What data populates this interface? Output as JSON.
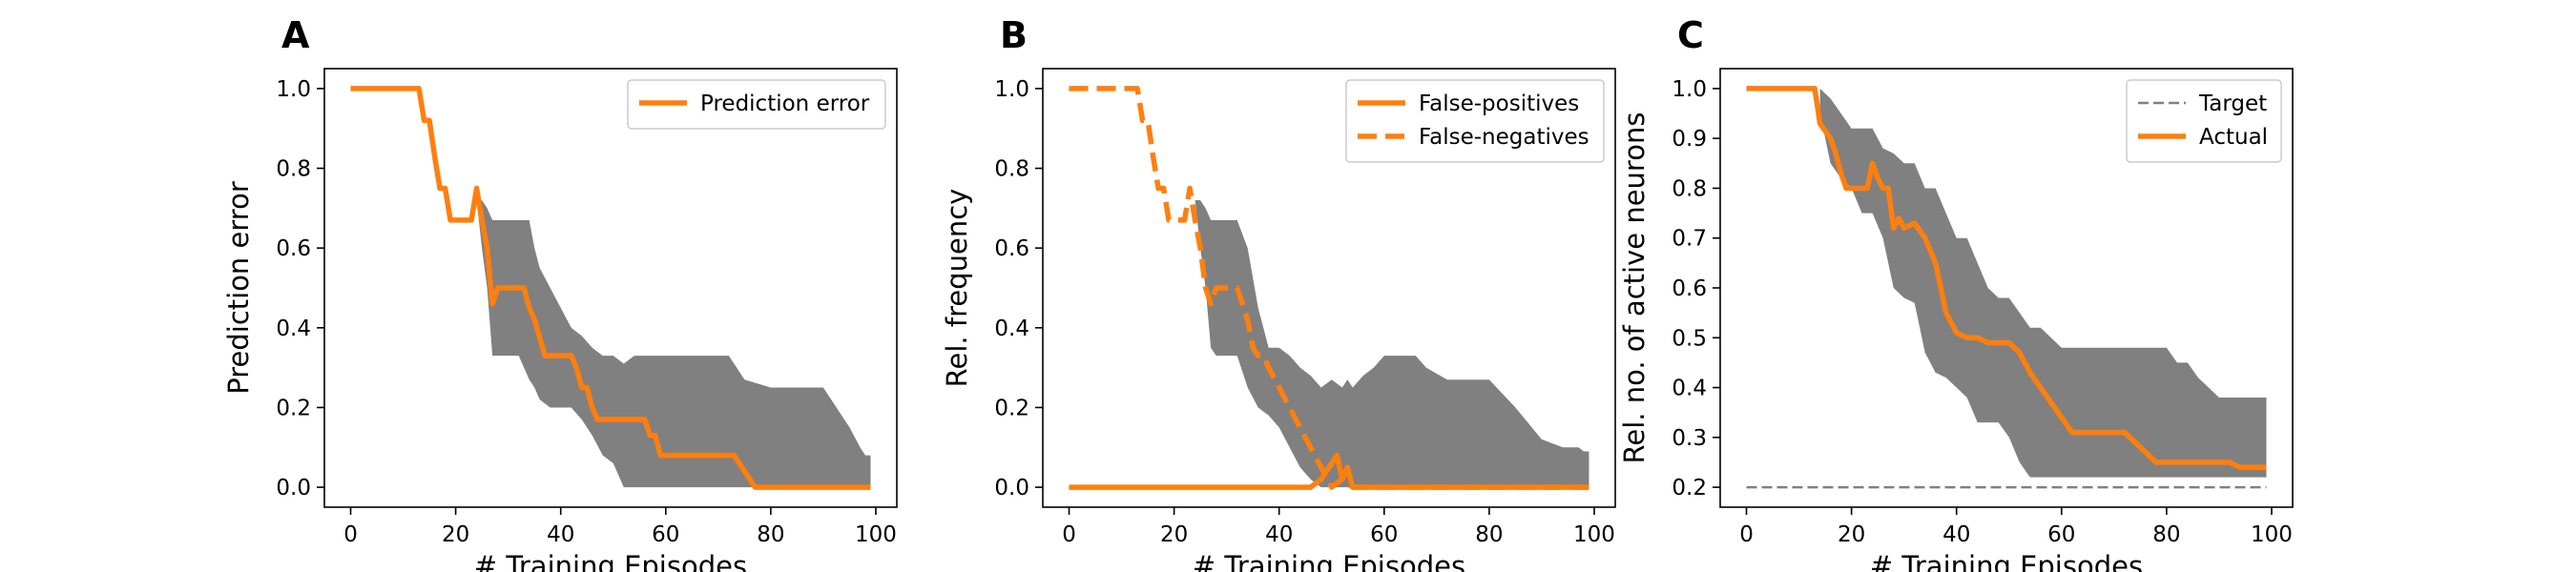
{
  "chart_data": [
    {
      "type": "line",
      "panel": "A",
      "xlabel": "# Training Episodes",
      "ylabel": "Prediction error",
      "xlim": [
        -5,
        104
      ],
      "ylim": [
        -0.05,
        1.05
      ],
      "xticks": [
        0,
        20,
        40,
        60,
        80,
        100
      ],
      "yticks": [
        0.0,
        0.2,
        0.4,
        0.6,
        0.8,
        1.0
      ],
      "tick_decimals": 1,
      "legend_position": "top-right",
      "series": [
        {
          "name": "Prediction error",
          "style": "solid",
          "color": "#ff7f0e",
          "x": [
            0,
            13,
            14,
            15,
            16,
            17,
            18,
            19,
            20,
            23,
            24,
            25,
            26,
            27,
            28,
            29,
            30,
            33,
            34,
            35,
            37,
            38,
            42,
            43,
            44,
            45,
            46,
            47,
            48,
            49,
            50,
            56,
            57,
            58,
            59,
            60,
            72,
            73,
            74,
            75,
            76,
            77,
            99
          ],
          "y": [
            1.0,
            1.0,
            0.92,
            0.92,
            0.83,
            0.75,
            0.75,
            0.67,
            0.67,
            0.67,
            0.75,
            0.67,
            0.6,
            0.46,
            0.5,
            0.5,
            0.5,
            0.5,
            0.45,
            0.42,
            0.33,
            0.33,
            0.33,
            0.3,
            0.25,
            0.25,
            0.2,
            0.17,
            0.17,
            0.17,
            0.17,
            0.17,
            0.13,
            0.13,
            0.08,
            0.08,
            0.08,
            0.08,
            0.06,
            0.04,
            0.02,
            0.0,
            0.0
          ]
        }
      ],
      "bands": [
        {
          "color": "#808080",
          "x": [
            24,
            25,
            26,
            27,
            28,
            29,
            30,
            32,
            34,
            35,
            36,
            38,
            40,
            42,
            44,
            46,
            48,
            50,
            52,
            54,
            56,
            58,
            60,
            65,
            70,
            72,
            75,
            80,
            85,
            90,
            95,
            97,
            98,
            99
          ],
          "upper": [
            0.72,
            0.72,
            0.7,
            0.67,
            0.67,
            0.67,
            0.67,
            0.67,
            0.67,
            0.6,
            0.55,
            0.5,
            0.45,
            0.4,
            0.38,
            0.35,
            0.33,
            0.33,
            0.31,
            0.33,
            0.33,
            0.33,
            0.33,
            0.33,
            0.33,
            0.33,
            0.27,
            0.25,
            0.25,
            0.25,
            0.15,
            0.1,
            0.08,
            0.08
          ],
          "lower": [
            0.72,
            0.6,
            0.5,
            0.33,
            0.33,
            0.33,
            0.33,
            0.33,
            0.27,
            0.25,
            0.22,
            0.2,
            0.2,
            0.2,
            0.17,
            0.13,
            0.08,
            0.06,
            0.0,
            0.0,
            0.0,
            0.0,
            0.0,
            0.0,
            0.0,
            0.0,
            0.0,
            0.0,
            0.0,
            0.0,
            0.0,
            0.0,
            0.0,
            0.0
          ]
        }
      ]
    },
    {
      "type": "line",
      "panel": "B",
      "xlabel": "# Training Episodes",
      "ylabel": "Rel. frequency",
      "xlim": [
        -5,
        104
      ],
      "ylim": [
        -0.05,
        1.05
      ],
      "xticks": [
        0,
        20,
        40,
        60,
        80,
        100
      ],
      "yticks": [
        0.0,
        0.2,
        0.4,
        0.6,
        0.8,
        1.0
      ],
      "tick_decimals": 1,
      "legend_position": "top-right",
      "series": [
        {
          "name": "False-positives",
          "style": "solid",
          "color": "#ff7f0e",
          "x": [
            0,
            46,
            47,
            48,
            49,
            50,
            51,
            52,
            53,
            54,
            55,
            56,
            99
          ],
          "y": [
            0.0,
            0.0,
            0.01,
            0.02,
            0.04,
            0.06,
            0.08,
            0.02,
            0.05,
            0.0,
            0.0,
            0.0,
            0.0
          ]
        },
        {
          "name": "False-negatives",
          "style": "dashed",
          "color": "#ff7f0e",
          "x": [
            0,
            13,
            14,
            15,
            16,
            17,
            18,
            19,
            20,
            22,
            23,
            24,
            25,
            26,
            27,
            28,
            29,
            30,
            32,
            34,
            35,
            36,
            37,
            38,
            40,
            42,
            44,
            46,
            48,
            50,
            52,
            54,
            99
          ],
          "y": [
            1.0,
            1.0,
            0.92,
            0.92,
            0.83,
            0.75,
            0.75,
            0.67,
            0.67,
            0.67,
            0.75,
            0.67,
            0.6,
            0.5,
            0.46,
            0.5,
            0.5,
            0.5,
            0.5,
            0.42,
            0.35,
            0.33,
            0.33,
            0.3,
            0.25,
            0.2,
            0.15,
            0.1,
            0.05,
            0.0,
            0.02,
            0.0,
            0.0
          ]
        }
      ],
      "bands": [
        {
          "color": "#808080",
          "x": [
            24,
            25,
            26,
            27,
            28,
            29,
            30,
            32,
            34,
            36,
            38,
            40,
            42,
            44,
            46,
            48,
            50,
            52,
            53,
            54,
            56,
            58,
            60,
            62,
            64,
            66,
            68,
            72,
            76,
            80,
            85,
            90,
            94,
            96,
            97,
            98,
            99
          ],
          "upper": [
            0.72,
            0.72,
            0.7,
            0.67,
            0.67,
            0.67,
            0.67,
            0.67,
            0.6,
            0.45,
            0.35,
            0.35,
            0.33,
            0.3,
            0.28,
            0.25,
            0.27,
            0.25,
            0.27,
            0.25,
            0.28,
            0.3,
            0.33,
            0.33,
            0.33,
            0.33,
            0.3,
            0.27,
            0.27,
            0.27,
            0.2,
            0.12,
            0.1,
            0.1,
            0.1,
            0.09,
            0.09
          ],
          "lower": [
            0.72,
            0.6,
            0.5,
            0.35,
            0.33,
            0.33,
            0.33,
            0.33,
            0.25,
            0.2,
            0.18,
            0.15,
            0.1,
            0.05,
            0.02,
            0.0,
            0.0,
            0.0,
            0.0,
            0.0,
            0.0,
            0.0,
            0.0,
            0.0,
            0.0,
            0.0,
            0.0,
            0.0,
            0.0,
            0.0,
            0.0,
            0.0,
            0.0,
            0.0,
            0.0,
            0.0,
            0.0
          ]
        }
      ]
    },
    {
      "type": "line",
      "panel": "C",
      "xlabel": "# Training Episodes",
      "ylabel": "Rel. no. of active neurons",
      "xlim": [
        -5,
        104
      ],
      "ylim": [
        0.16,
        1.04
      ],
      "xticks": [
        0,
        20,
        40,
        60,
        80,
        100
      ],
      "yticks": [
        0.2,
        0.3,
        0.4,
        0.5,
        0.6,
        0.7,
        0.8,
        0.9,
        1.0
      ],
      "tick_decimals": 1,
      "legend_position": "top-right",
      "series": [
        {
          "name": "Target",
          "style": "dashed-thin",
          "color": "#808080",
          "x": [
            0,
            99
          ],
          "y": [
            0.2,
            0.2
          ]
        },
        {
          "name": "Actual",
          "style": "solid",
          "color": "#ff7f0e",
          "x": [
            0,
            13,
            14,
            16,
            17,
            18,
            19,
            20,
            22,
            23,
            24,
            25,
            26,
            27,
            28,
            29,
            30,
            32,
            34,
            36,
            38,
            40,
            42,
            44,
            46,
            50,
            52,
            54,
            56,
            58,
            60,
            62,
            64,
            66,
            68,
            70,
            72,
            74,
            76,
            78,
            80,
            82,
            84,
            86,
            88,
            90,
            92,
            94,
            96,
            99
          ],
          "y": [
            1.0,
            1.0,
            0.93,
            0.9,
            0.87,
            0.83,
            0.8,
            0.8,
            0.8,
            0.8,
            0.85,
            0.82,
            0.8,
            0.8,
            0.72,
            0.74,
            0.72,
            0.73,
            0.7,
            0.65,
            0.55,
            0.51,
            0.5,
            0.5,
            0.49,
            0.49,
            0.47,
            0.43,
            0.4,
            0.37,
            0.34,
            0.31,
            0.31,
            0.31,
            0.31,
            0.31,
            0.31,
            0.29,
            0.27,
            0.25,
            0.25,
            0.25,
            0.25,
            0.25,
            0.25,
            0.25,
            0.25,
            0.24,
            0.24,
            0.24
          ]
        }
      ],
      "bands": [
        {
          "color": "#808080",
          "x": [
            14,
            16,
            18,
            20,
            22,
            24,
            26,
            28,
            30,
            32,
            34,
            36,
            38,
            40,
            42,
            44,
            46,
            48,
            50,
            52,
            54,
            56,
            58,
            60,
            62,
            64,
            66,
            68,
            70,
            72,
            74,
            76,
            78,
            80,
            82,
            84,
            86,
            88,
            90,
            92,
            94,
            96,
            98,
            99
          ],
          "upper": [
            1.0,
            0.98,
            0.95,
            0.92,
            0.92,
            0.92,
            0.88,
            0.87,
            0.85,
            0.85,
            0.8,
            0.8,
            0.75,
            0.7,
            0.7,
            0.65,
            0.6,
            0.58,
            0.58,
            0.55,
            0.52,
            0.52,
            0.5,
            0.48,
            0.48,
            0.48,
            0.48,
            0.48,
            0.48,
            0.48,
            0.48,
            0.48,
            0.48,
            0.48,
            0.45,
            0.45,
            0.42,
            0.4,
            0.38,
            0.38,
            0.38,
            0.38,
            0.38,
            0.38
          ],
          "lower": [
            0.95,
            0.85,
            0.82,
            0.8,
            0.75,
            0.75,
            0.7,
            0.6,
            0.58,
            0.57,
            0.47,
            0.43,
            0.42,
            0.4,
            0.38,
            0.33,
            0.33,
            0.33,
            0.3,
            0.25,
            0.22,
            0.22,
            0.22,
            0.22,
            0.22,
            0.22,
            0.22,
            0.22,
            0.22,
            0.22,
            0.22,
            0.22,
            0.22,
            0.22,
            0.22,
            0.22,
            0.22,
            0.22,
            0.22,
            0.22,
            0.22,
            0.22,
            0.22,
            0.22
          ]
        }
      ]
    }
  ]
}
